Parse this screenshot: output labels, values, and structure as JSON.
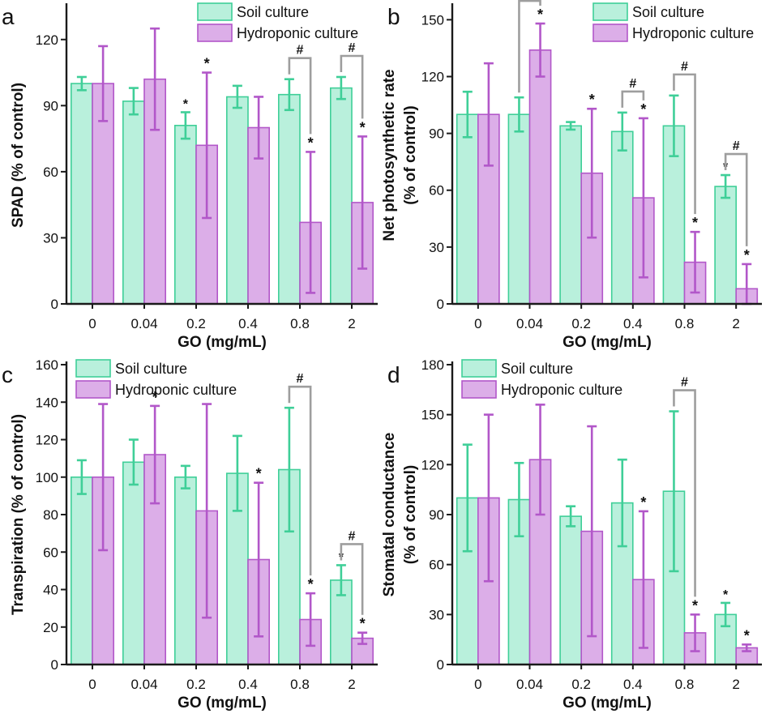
{
  "colors": {
    "soil_fill": "#b9f0dc",
    "soil_stroke": "#3fcf98",
    "hydro_fill": "#dcaee8",
    "hydro_stroke": "#b257c9",
    "axis": "#1a1a1a",
    "bracket": "#9e9e9e"
  },
  "chart_data": [
    {
      "panel": "a",
      "type": "bar",
      "categories": [
        "0",
        "0.04",
        "0.2",
        "0.4",
        "0.8",
        "2"
      ],
      "xlabel": "GO (mg/mL)",
      "ylabel": "SPAD (% of control)",
      "ylim": [
        0,
        135
      ],
      "yticks": [
        "0",
        "30",
        "60",
        "90",
        "120"
      ],
      "legend_position": "top-right",
      "series": [
        {
          "name": "Soil culture",
          "values": [
            100,
            92,
            81,
            94,
            95,
            98
          ],
          "errors": [
            3,
            6,
            6,
            5,
            7,
            5
          ],
          "marks": [
            "",
            "",
            "*",
            "",
            "",
            ""
          ]
        },
        {
          "name": "Hydroponic culture",
          "values": [
            100,
            102,
            72,
            80,
            37,
            46
          ],
          "errors": [
            17,
            23,
            33,
            14,
            32,
            30
          ],
          "marks": [
            "",
            "",
            "*",
            "",
            "*",
            "*"
          ]
        }
      ],
      "brackets": [
        {
          "category_index": 4,
          "label": "#"
        },
        {
          "category_index": 5,
          "label": "#"
        }
      ]
    },
    {
      "panel": "b",
      "type": "bar",
      "categories": [
        "0",
        "0.04",
        "0.2",
        "0.4",
        "0.8",
        "2"
      ],
      "xlabel": "GO (mg/mL)",
      "ylabel": [
        "Net photosynthetic rate",
        "(% of control)"
      ],
      "ylim": [
        0,
        157
      ],
      "yticks": [
        "0",
        "30",
        "60",
        "90",
        "120",
        "150"
      ],
      "legend_position": "top-right",
      "series": [
        {
          "name": "Soil culture",
          "values": [
            100,
            100,
            94,
            91,
            94,
            62
          ],
          "errors": [
            12,
            9,
            2,
            10,
            16,
            6
          ],
          "marks": [
            "",
            "",
            "",
            "",
            "",
            "*"
          ]
        },
        {
          "name": "Hydroponic culture",
          "values": [
            100,
            134,
            69,
            56,
            22,
            8
          ],
          "errors": [
            27,
            14,
            34,
            42,
            16,
            13
          ],
          "marks": [
            "",
            "*",
            "*",
            "*",
            "*",
            "*"
          ]
        }
      ],
      "brackets": [
        {
          "category_index": 1,
          "label": "#"
        },
        {
          "category_index": 3,
          "label": "#"
        },
        {
          "category_index": 4,
          "label": "#"
        },
        {
          "category_index": 5,
          "label": "#"
        }
      ]
    },
    {
      "panel": "c",
      "type": "bar",
      "categories": [
        "0",
        "0.04",
        "0.2",
        "0.4",
        "0.8",
        "2"
      ],
      "xlabel": "GO (mg/mL)",
      "ylabel": "Transpiration (% of control)",
      "ylim": [
        0,
        160
      ],
      "yticks": [
        "0",
        "20",
        "40",
        "60",
        "80",
        "100",
        "120",
        "140",
        "160"
      ],
      "legend_position": "top",
      "series": [
        {
          "name": "Soil culture",
          "values": [
            100,
            108,
            100,
            102,
            104,
            45
          ],
          "errors": [
            9,
            12,
            6,
            20,
            33,
            8
          ],
          "marks": [
            "",
            "",
            "",
            "",
            "",
            "*"
          ]
        },
        {
          "name": "Hydroponic culture",
          "values": [
            100,
            112,
            82,
            56,
            24,
            14
          ],
          "errors": [
            39,
            26,
            57,
            41,
            14,
            3
          ],
          "marks": [
            "",
            "*",
            "",
            "*",
            "*",
            "*"
          ]
        }
      ],
      "brackets": [
        {
          "category_index": 4,
          "label": "#"
        },
        {
          "category_index": 5,
          "label": "#"
        }
      ]
    },
    {
      "panel": "d",
      "type": "bar",
      "categories": [
        "0",
        "0.04",
        "0.2",
        "0.4",
        "0.8",
        "2"
      ],
      "xlabel": "GO (mg/mL)",
      "ylabel": [
        "Stomatal conductance",
        "(% of control)"
      ],
      "ylim": [
        0,
        180
      ],
      "yticks": [
        "0",
        "30",
        "60",
        "90",
        "120",
        "150",
        "180"
      ],
      "legend_position": "top-left",
      "series": [
        {
          "name": "Soil culture",
          "values": [
            100,
            99,
            89,
            97,
            104,
            30
          ],
          "errors": [
            32,
            22,
            6,
            26,
            48,
            7
          ],
          "marks": [
            "",
            "",
            "",
            "",
            "",
            "*"
          ]
        },
        {
          "name": "Hydroponic culture",
          "values": [
            100,
            123,
            80,
            51,
            19,
            10
          ],
          "errors": [
            50,
            33,
            63,
            41,
            11,
            2
          ],
          "marks": [
            "",
            "",
            "",
            "*",
            "*",
            "*"
          ]
        }
      ],
      "brackets": [
        {
          "category_index": 4,
          "label": "#"
        }
      ]
    }
  ]
}
